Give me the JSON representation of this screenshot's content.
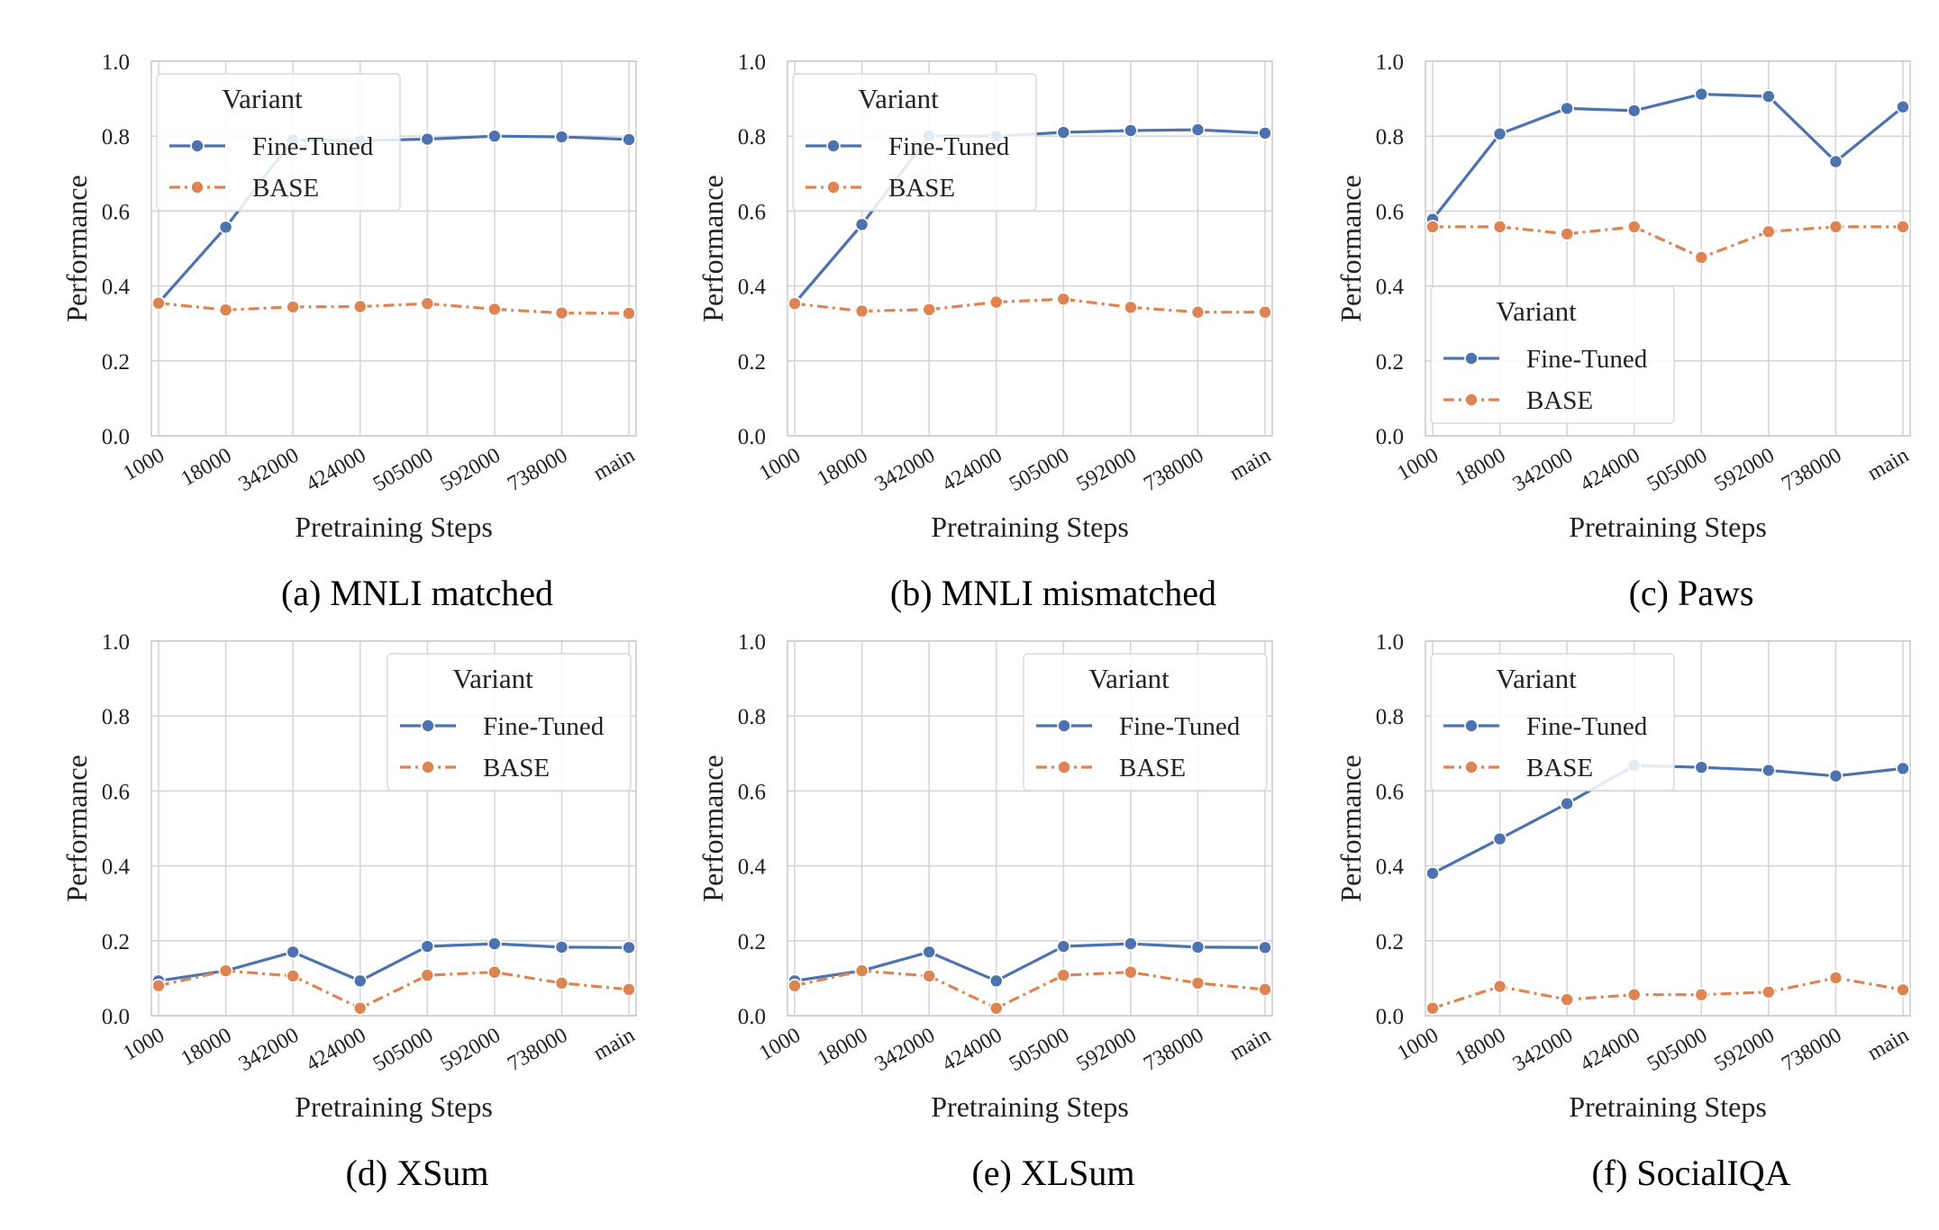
{
  "colors": {
    "fine_tuned": "#4c72b0",
    "base": "#dd8452",
    "grid": "#d6d6d6",
    "frame": "#cccccc"
  },
  "chart_data": [
    {
      "type": "line",
      "caption": "(a) MNLI matched",
      "xlabel": "Pretraining Steps",
      "ylabel": "Performance",
      "categories": [
        "1000",
        "18000",
        "342000",
        "424000",
        "505000",
        "592000",
        "738000",
        "main"
      ],
      "ylim": [
        0.0,
        1.0
      ],
      "yticks": [
        "0.0",
        "0.2",
        "0.4",
        "0.6",
        "0.8",
        "1.0"
      ],
      "grid": true,
      "legend": {
        "title": "Variant",
        "placement": "upper-left"
      },
      "series": [
        {
          "name": "Fine-Tuned",
          "style": "solid",
          "values": [
            0.355,
            0.557,
            0.79,
            0.788,
            0.792,
            0.8,
            0.798,
            0.791
          ]
        },
        {
          "name": "BASE",
          "style": "dashdot",
          "values": [
            0.354,
            0.336,
            0.344,
            0.345,
            0.353,
            0.338,
            0.328,
            0.327
          ]
        }
      ]
    },
    {
      "type": "line",
      "caption": "(b) MNLI mismatched",
      "xlabel": "Pretraining Steps",
      "ylabel": "Performance",
      "categories": [
        "1000",
        "18000",
        "342000",
        "424000",
        "505000",
        "592000",
        "738000",
        "main"
      ],
      "ylim": [
        0.0,
        1.0
      ],
      "yticks": [
        "0.0",
        "0.2",
        "0.4",
        "0.6",
        "0.8",
        "1.0"
      ],
      "grid": true,
      "legend": {
        "title": "Variant",
        "placement": "upper-left"
      },
      "series": [
        {
          "name": "Fine-Tuned",
          "style": "solid",
          "values": [
            0.354,
            0.564,
            0.801,
            0.8,
            0.81,
            0.815,
            0.817,
            0.808
          ]
        },
        {
          "name": "BASE",
          "style": "dashdot",
          "values": [
            0.353,
            0.333,
            0.337,
            0.357,
            0.365,
            0.343,
            0.33,
            0.33
          ]
        }
      ]
    },
    {
      "type": "line",
      "caption": "(c) Paws",
      "xlabel": "Pretraining Steps",
      "ylabel": "Performance",
      "categories": [
        "1000",
        "18000",
        "342000",
        "424000",
        "505000",
        "592000",
        "738000",
        "main"
      ],
      "ylim": [
        0.0,
        1.0
      ],
      "yticks": [
        "0.0",
        "0.2",
        "0.4",
        "0.6",
        "0.8",
        "1.0"
      ],
      "grid": true,
      "legend": {
        "title": "Variant",
        "placement": "lower-left"
      },
      "series": [
        {
          "name": "Fine-Tuned",
          "style": "solid",
          "values": [
            0.578,
            0.806,
            0.874,
            0.868,
            0.912,
            0.906,
            0.732,
            0.878
          ]
        },
        {
          "name": "BASE",
          "style": "dashdot",
          "values": [
            0.558,
            0.558,
            0.539,
            0.558,
            0.476,
            0.545,
            0.558,
            0.558
          ]
        }
      ]
    },
    {
      "type": "line",
      "caption": "(d) XSum",
      "xlabel": "Pretraining Steps",
      "ylabel": "Performance",
      "categories": [
        "1000",
        "18000",
        "342000",
        "424000",
        "505000",
        "592000",
        "738000",
        "main"
      ],
      "ylim": [
        0.0,
        1.0
      ],
      "yticks": [
        "0.0",
        "0.2",
        "0.4",
        "0.6",
        "0.8",
        "1.0"
      ],
      "grid": true,
      "legend": {
        "title": "Variant",
        "placement": "upper-right"
      },
      "series": [
        {
          "name": "Fine-Tuned",
          "style": "solid",
          "values": [
            0.093,
            0.12,
            0.17,
            0.093,
            0.185,
            0.192,
            0.183,
            0.182
          ]
        },
        {
          "name": "BASE",
          "style": "dashdot",
          "values": [
            0.08,
            0.12,
            0.106,
            0.02,
            0.108,
            0.116,
            0.087,
            0.07
          ]
        }
      ]
    },
    {
      "type": "line",
      "caption": "(e) XLSum",
      "xlabel": "Pretraining Steps",
      "ylabel": "Performance",
      "categories": [
        "1000",
        "18000",
        "342000",
        "424000",
        "505000",
        "592000",
        "738000",
        "main"
      ],
      "ylim": [
        0.0,
        1.0
      ],
      "yticks": [
        "0.0",
        "0.2",
        "0.4",
        "0.6",
        "0.8",
        "1.0"
      ],
      "grid": true,
      "legend": {
        "title": "Variant",
        "placement": "upper-right"
      },
      "series": [
        {
          "name": "Fine-Tuned",
          "style": "solid",
          "values": [
            0.093,
            0.12,
            0.17,
            0.093,
            0.185,
            0.192,
            0.183,
            0.182
          ]
        },
        {
          "name": "BASE",
          "style": "dashdot",
          "values": [
            0.08,
            0.12,
            0.106,
            0.02,
            0.108,
            0.116,
            0.087,
            0.07
          ]
        }
      ]
    },
    {
      "type": "line",
      "caption": "(f) SocialIQA",
      "xlabel": "Pretraining Steps",
      "ylabel": "Performance",
      "categories": [
        "1000",
        "18000",
        "342000",
        "424000",
        "505000",
        "592000",
        "738000",
        "main"
      ],
      "ylim": [
        0.0,
        1.0
      ],
      "yticks": [
        "0.0",
        "0.2",
        "0.4",
        "0.6",
        "0.8",
        "1.0"
      ],
      "grid": true,
      "legend": {
        "title": "Variant",
        "placement": "upper-left"
      },
      "series": [
        {
          "name": "Fine-Tuned",
          "style": "solid",
          "values": [
            0.38,
            0.472,
            0.566,
            0.668,
            0.663,
            0.655,
            0.64,
            0.66
          ]
        },
        {
          "name": "BASE",
          "style": "dashdot",
          "values": [
            0.02,
            0.078,
            0.043,
            0.056,
            0.056,
            0.063,
            0.101,
            0.069
          ]
        }
      ]
    }
  ]
}
